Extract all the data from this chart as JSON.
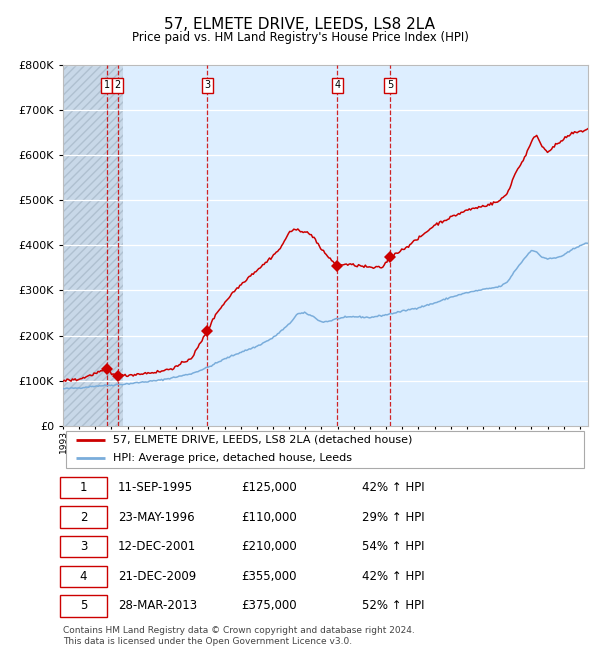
{
  "title": "57, ELMETE DRIVE, LEEDS, LS8 2LA",
  "subtitle": "Price paid vs. HM Land Registry's House Price Index (HPI)",
  "legend_line1": "57, ELMETE DRIVE, LEEDS, LS8 2LA (detached house)",
  "legend_line2": "HPI: Average price, detached house, Leeds",
  "footer1": "Contains HM Land Registry data © Crown copyright and database right 2024.",
  "footer2": "This data is licensed under the Open Government Licence v3.0.",
  "sales": [
    {
      "num": 1,
      "date": "11-SEP-1995",
      "price": 125000,
      "year": 1995.7,
      "pct": "42%",
      "dir": "↑"
    },
    {
      "num": 2,
      "date": "23-MAY-1996",
      "price": 110000,
      "year": 1996.39,
      "pct": "29%",
      "dir": "↑"
    },
    {
      "num": 3,
      "date": "12-DEC-2001",
      "price": 210000,
      "year": 2001.94,
      "pct": "54%",
      "dir": "↑"
    },
    {
      "num": 4,
      "date": "21-DEC-2009",
      "price": 355000,
      "year": 2009.97,
      "pct": "42%",
      "dir": "↑"
    },
    {
      "num": 5,
      "date": "28-MAR-2013",
      "price": 375000,
      "year": 2013.24,
      "pct": "52%",
      "dir": "↑"
    }
  ],
  "hpi_color": "#7aaddb",
  "price_color": "#cc0000",
  "vline_color": "#cc0000",
  "marker_color": "#cc0000",
  "bg_color": "#ddeeff",
  "grid_color": "#ffffff",
  "ylim": [
    0,
    800000
  ],
  "xlim_start": 1993.0,
  "xlim_end": 2025.5,
  "hatch_end": 1996.7
}
